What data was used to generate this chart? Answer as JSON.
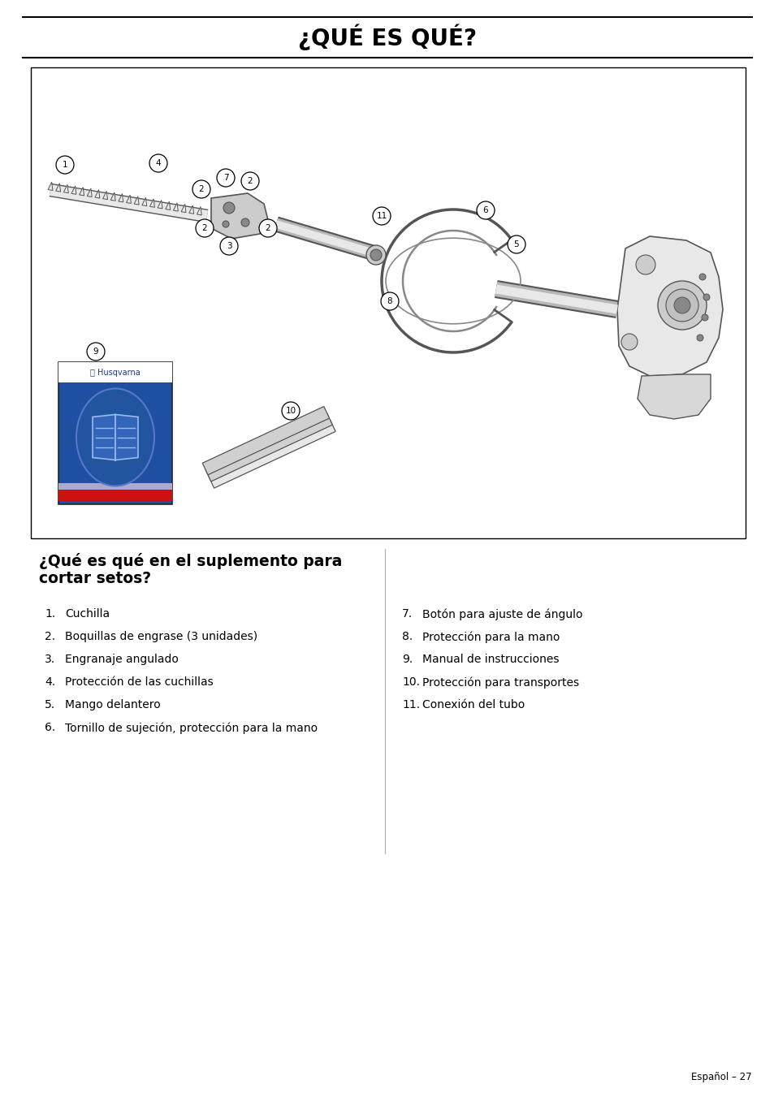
{
  "title": "¿QUÉ ES QUÉ?",
  "title_fontsize": 20,
  "title_fontweight": "bold",
  "background_color": "#ffffff",
  "section_title_line1": "¿Qué es qué en el suplemento para",
  "section_title_line2": "cortar setos?",
  "section_title_fontsize": 13.5,
  "items_left": [
    [
      "1.",
      "Cuchilla"
    ],
    [
      "2.",
      "Boquillas de engrase (3 unidades)"
    ],
    [
      "3.",
      "Engranaje angulado"
    ],
    [
      "4.",
      "Protección de las cuchillas"
    ],
    [
      "5.",
      "Mango delantero"
    ],
    [
      "6.",
      "Tornillo de sujeción, protección para la mano"
    ]
  ],
  "items_right": [
    [
      "7.",
      "Botón para ajuste de ángulo"
    ],
    [
      "8.",
      "Protección para la mano"
    ],
    [
      "9.",
      "Manual de instrucciones"
    ],
    [
      "10.",
      "Protección para transportes"
    ],
    [
      "11.",
      "Conexión del tubo"
    ]
  ],
  "footer_text": "Español – 27",
  "husqvarna_blue": "#1e4fa0",
  "husqvarna_red": "#cc1111",
  "divider_color": "#aaaaaa",
  "line_color": "#000000",
  "gray_dark": "#555555",
  "gray_mid": "#888888",
  "gray_light": "#cccccc",
  "gray_xlight": "#e8e8e8"
}
